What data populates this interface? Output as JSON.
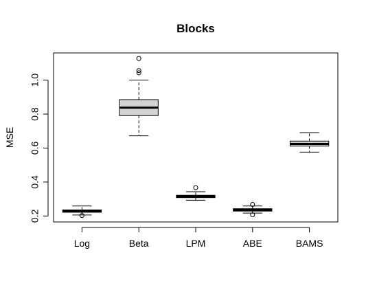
{
  "chart_data": {
    "type": "box",
    "title": "Blocks",
    "xlabel": "",
    "ylabel": "MSE",
    "ylim": [
      0.165,
      1.16
    ],
    "yticks": [
      0.2,
      0.4,
      0.6,
      0.8,
      1.0
    ],
    "ytick_labels": [
      "0.2",
      "0.4",
      "0.6",
      "0.8",
      "1.0"
    ],
    "categories": [
      "Log",
      "Beta",
      "LPM",
      "ABE",
      "BAMS"
    ],
    "grid": false,
    "box_fill": "#d3d3d3",
    "boxes": [
      {
        "name": "Log",
        "whisker_low": 0.206,
        "q1": 0.222,
        "median": 0.229,
        "q3": 0.236,
        "whisker_high": 0.259,
        "outliers": [
          0.203
        ]
      },
      {
        "name": "Beta",
        "whisker_low": 0.672,
        "q1": 0.791,
        "median": 0.838,
        "q3": 0.885,
        "whisker_high": 1.0,
        "outliers": [
          1.043,
          1.056,
          1.127
        ]
      },
      {
        "name": "LPM",
        "whisker_low": 0.293,
        "q1": 0.308,
        "median": 0.315,
        "q3": 0.322,
        "whisker_high": 0.343,
        "outliers": [
          0.367
        ]
      },
      {
        "name": "ABE",
        "whisker_low": 0.217,
        "q1": 0.229,
        "median": 0.236,
        "q3": 0.243,
        "whisker_high": 0.259,
        "outliers": [
          0.207,
          0.268
        ]
      },
      {
        "name": "BAMS",
        "whisker_low": 0.576,
        "q1": 0.612,
        "median": 0.624,
        "q3": 0.641,
        "whisker_high": 0.691,
        "outliers": []
      }
    ]
  }
}
